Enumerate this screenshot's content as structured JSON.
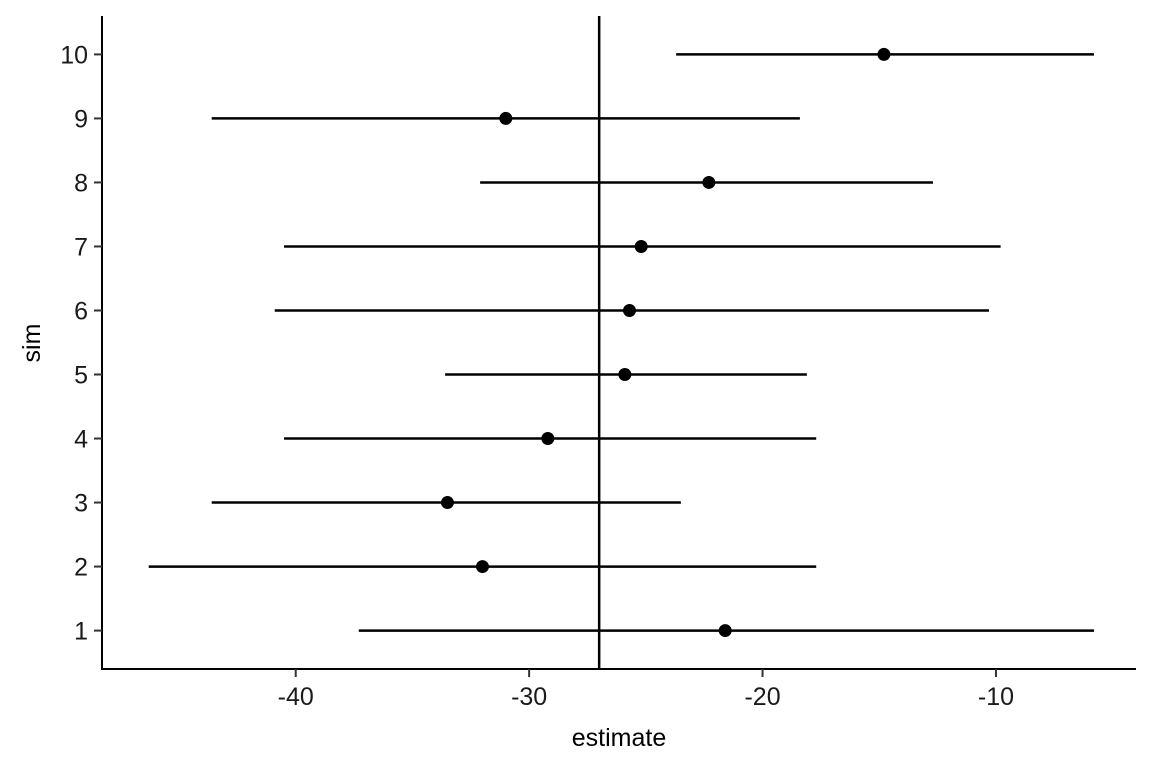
{
  "chart_data": {
    "type": "scatter",
    "subtype": "point-range",
    "title": "",
    "xlabel": "estimate",
    "ylabel": "sim",
    "xlim": [
      -48.3,
      -4.0
    ],
    "ylim": [
      0.4,
      10.6
    ],
    "x_ticks": [
      -40,
      -30,
      -20,
      -10
    ],
    "x_tick_labels": [
      "-40",
      "-30",
      "-20",
      "-10"
    ],
    "y_ticks": [
      1,
      2,
      3,
      4,
      5,
      6,
      7,
      8,
      9,
      10
    ],
    "y_tick_labels": [
      "1",
      "2",
      "3",
      "4",
      "5",
      "6",
      "7",
      "8",
      "9",
      "10"
    ],
    "reference_line_x": -27.0,
    "grid": false,
    "legend": "none",
    "points": [
      {
        "sim": 1,
        "estimate": -21.6,
        "low": -37.3,
        "high": -5.8
      },
      {
        "sim": 2,
        "estimate": -32.0,
        "low": -46.3,
        "high": -17.7
      },
      {
        "sim": 3,
        "estimate": -33.5,
        "low": -43.6,
        "high": -23.5
      },
      {
        "sim": 4,
        "estimate": -29.2,
        "low": -40.5,
        "high": -17.7
      },
      {
        "sim": 5,
        "estimate": -25.9,
        "low": -33.6,
        "high": -18.1
      },
      {
        "sim": 6,
        "estimate": -25.7,
        "low": -40.9,
        "high": -10.3
      },
      {
        "sim": 7,
        "estimate": -25.2,
        "low": -40.5,
        "high": -9.8
      },
      {
        "sim": 8,
        "estimate": -22.3,
        "low": -32.1,
        "high": -12.7
      },
      {
        "sim": 9,
        "estimate": -31.0,
        "low": -43.6,
        "high": -18.4
      },
      {
        "sim": 10,
        "estimate": -14.8,
        "low": -23.7,
        "high": -5.8
      }
    ]
  }
}
